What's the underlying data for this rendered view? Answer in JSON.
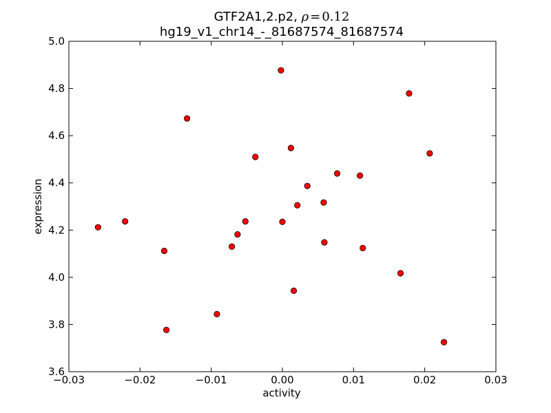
{
  "chart_data": {
    "type": "scatter",
    "title": "GTF2A1,2.p2, ρ = 0.12",
    "title_line1_prefix": "GTF2A1,2.p2, ",
    "title_rho_symbol": "ρ",
    "title_rho_equals": "=",
    "title_rho_value": "0.12",
    "subtitle": "hg19_v1_chr14_-_81687574_81687574",
    "xlabel": "activity",
    "ylabel": "expression",
    "xlim": [
      -0.03,
      0.03
    ],
    "ylim": [
      3.6,
      5.0
    ],
    "xticks": [
      -0.03,
      -0.02,
      -0.01,
      0.0,
      0.01,
      0.02,
      0.03
    ],
    "xtick_labels": [
      "−0.03",
      "−0.02",
      "−0.01",
      "0.00",
      "0.01",
      "0.02",
      "0.03"
    ],
    "yticks": [
      3.6,
      3.8,
      4.0,
      4.2,
      4.4,
      4.6,
      4.8,
      5.0
    ],
    "ytick_labels": [
      "3.6",
      "3.8",
      "4.0",
      "4.2",
      "4.4",
      "4.6",
      "4.8",
      "5.0"
    ],
    "grid": false,
    "marker_color": "#ff0000",
    "marker_edge_color": "#000000",
    "points": [
      {
        "x": -0.0259,
        "y": 4.212
      },
      {
        "x": -0.0221,
        "y": 4.237
      },
      {
        "x": -0.0166,
        "y": 4.112
      },
      {
        "x": -0.0163,
        "y": 3.777
      },
      {
        "x": -0.0134,
        "y": 4.673
      },
      {
        "x": -0.0092,
        "y": 3.844
      },
      {
        "x": -0.0071,
        "y": 4.13
      },
      {
        "x": -0.0063,
        "y": 4.182
      },
      {
        "x": -0.0052,
        "y": 4.237
      },
      {
        "x": -0.0038,
        "y": 4.51
      },
      {
        "x": -0.0002,
        "y": 4.877
      },
      {
        "x": 0.0,
        "y": 4.235
      },
      {
        "x": 0.0012,
        "y": 4.548
      },
      {
        "x": 0.0016,
        "y": 3.943
      },
      {
        "x": 0.0021,
        "y": 4.305
      },
      {
        "x": 0.0035,
        "y": 4.387
      },
      {
        "x": 0.0058,
        "y": 4.317
      },
      {
        "x": 0.0059,
        "y": 4.148
      },
      {
        "x": 0.0077,
        "y": 4.44
      },
      {
        "x": 0.0109,
        "y": 4.431
      },
      {
        "x": 0.0113,
        "y": 4.124
      },
      {
        "x": 0.0166,
        "y": 4.017
      },
      {
        "x": 0.0178,
        "y": 4.779
      },
      {
        "x": 0.0207,
        "y": 4.525
      },
      {
        "x": 0.0227,
        "y": 3.725
      }
    ]
  }
}
